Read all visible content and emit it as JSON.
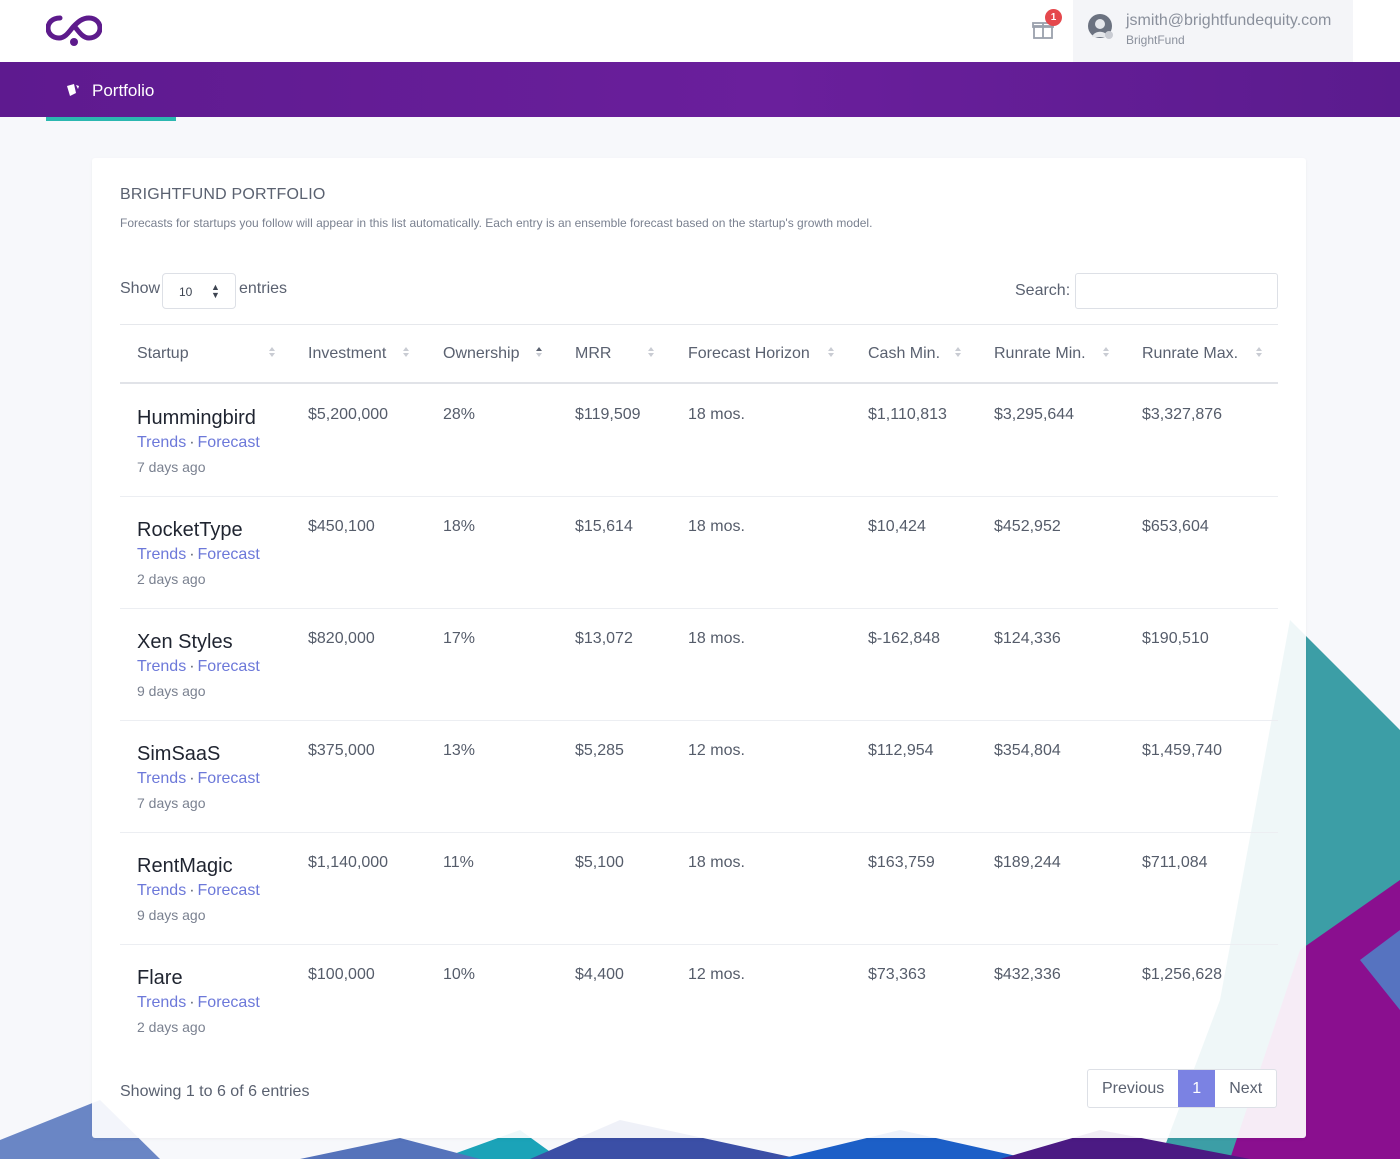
{
  "header": {
    "user_email": "jsmith@brightfundequity.com",
    "user_org": "BrightFund",
    "notification_count": "1"
  },
  "nav": {
    "portfolio_label": "Portfolio"
  },
  "card": {
    "title": "BRIGHTFUND PORTFOLIO",
    "subtitle": "Forecasts for startups you follow will appear in this list automatically. Each entry is an ensemble forecast based on the startup's growth model."
  },
  "controls": {
    "show_label": "Show",
    "entries_value": "10",
    "entries_label": "entries",
    "search_label": "Search:",
    "search_value": ""
  },
  "table": {
    "columns": [
      "Startup",
      "Investment",
      "Ownership",
      "MRR",
      "Forecast Horizon",
      "Cash Min.",
      "Runrate Min.",
      "Runrate Max."
    ],
    "sorted_column": "Ownership",
    "link_trends": "Trends",
    "link_forecast": "Forecast",
    "rows": [
      {
        "name": "Hummingbird",
        "ago": "7 days ago",
        "investment": "$5,200,000",
        "ownership": "28%",
        "mrr": "$119,509",
        "horizon": "18 mos.",
        "cash_min": "$1,110,813",
        "runrate_min": "$3,295,644",
        "runrate_max": "$3,327,876"
      },
      {
        "name": "RocketType",
        "ago": "2 days ago",
        "investment": "$450,100",
        "ownership": "18%",
        "mrr": "$15,614",
        "horizon": "18 mos.",
        "cash_min": "$10,424",
        "runrate_min": "$452,952",
        "runrate_max": "$653,604"
      },
      {
        "name": "Xen Styles",
        "ago": "9 days ago",
        "investment": "$820,000",
        "ownership": "17%",
        "mrr": "$13,072",
        "horizon": "18 mos.",
        "cash_min": "$-162,848",
        "runrate_min": "$124,336",
        "runrate_max": "$190,510"
      },
      {
        "name": "SimSaaS",
        "ago": "7 days ago",
        "investment": "$375,000",
        "ownership": "13%",
        "mrr": "$5,285",
        "horizon": "12 mos.",
        "cash_min": "$112,954",
        "runrate_min": "$354,804",
        "runrate_max": "$1,459,740"
      },
      {
        "name": "RentMagic",
        "ago": "9 days ago",
        "investment": "$1,140,000",
        "ownership": "11%",
        "mrr": "$5,100",
        "horizon": "18 mos.",
        "cash_min": "$163,759",
        "runrate_min": "$189,244",
        "runrate_max": "$711,084"
      },
      {
        "name": "Flare",
        "ago": "2 days ago",
        "investment": "$100,000",
        "ownership": "10%",
        "mrr": "$4,400",
        "horizon": "12 mos.",
        "cash_min": "$73,363",
        "runrate_min": "$432,336",
        "runrate_max": "$1,256,628"
      }
    ]
  },
  "footer": {
    "info": "Showing 1 to 6 of 6 entries",
    "previous": "Previous",
    "page": "1",
    "next": "Next"
  },
  "colors": {
    "nav_purple": "#6a1f9c",
    "accent_teal": "#2bb7b0",
    "link_blue": "#6c78d9",
    "pager_active": "#7b82e3",
    "badge_red": "#e5484d"
  },
  "icons": [
    "infinity-logo-icon",
    "gift-icon",
    "user-avatar-icon",
    "portfolio-icon",
    "sort-icon"
  ]
}
